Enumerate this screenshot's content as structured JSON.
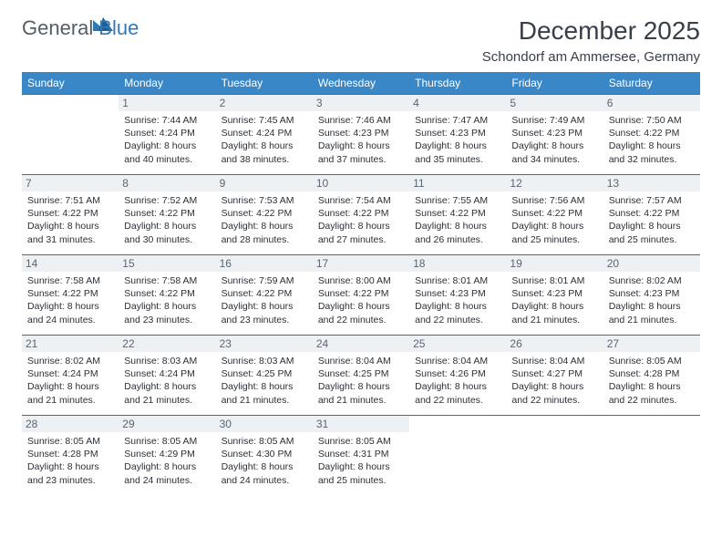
{
  "brand": {
    "general": "General",
    "blue": "Blue"
  },
  "title": "December 2025",
  "location": "Schondorf am Ammersee, Germany",
  "colors": {
    "header_bg": "#3a87c7",
    "header_text": "#ffffff",
    "daynum_bg": "#eef1f4",
    "daynum_text": "#5a6573",
    "rule": "#3a6fa5",
    "brand_gray": "#555d66",
    "brand_blue": "#2f79b9"
  },
  "typography": {
    "title_fontsize": 28,
    "location_fontsize": 15,
    "weekday_fontsize": 12,
    "daynum_fontsize": 12,
    "body_fontsize": 10.5
  },
  "weekdays": [
    "Sunday",
    "Monday",
    "Tuesday",
    "Wednesday",
    "Thursday",
    "Friday",
    "Saturday"
  ],
  "weeks": [
    [
      null,
      {
        "n": "1",
        "sr": "7:44 AM",
        "ss": "4:24 PM",
        "dl": "8 hours and 40 minutes."
      },
      {
        "n": "2",
        "sr": "7:45 AM",
        "ss": "4:24 PM",
        "dl": "8 hours and 38 minutes."
      },
      {
        "n": "3",
        "sr": "7:46 AM",
        "ss": "4:23 PM",
        "dl": "8 hours and 37 minutes."
      },
      {
        "n": "4",
        "sr": "7:47 AM",
        "ss": "4:23 PM",
        "dl": "8 hours and 35 minutes."
      },
      {
        "n": "5",
        "sr": "7:49 AM",
        "ss": "4:23 PM",
        "dl": "8 hours and 34 minutes."
      },
      {
        "n": "6",
        "sr": "7:50 AM",
        "ss": "4:22 PM",
        "dl": "8 hours and 32 minutes."
      }
    ],
    [
      {
        "n": "7",
        "sr": "7:51 AM",
        "ss": "4:22 PM",
        "dl": "8 hours and 31 minutes."
      },
      {
        "n": "8",
        "sr": "7:52 AM",
        "ss": "4:22 PM",
        "dl": "8 hours and 30 minutes."
      },
      {
        "n": "9",
        "sr": "7:53 AM",
        "ss": "4:22 PM",
        "dl": "8 hours and 28 minutes."
      },
      {
        "n": "10",
        "sr": "7:54 AM",
        "ss": "4:22 PM",
        "dl": "8 hours and 27 minutes."
      },
      {
        "n": "11",
        "sr": "7:55 AM",
        "ss": "4:22 PM",
        "dl": "8 hours and 26 minutes."
      },
      {
        "n": "12",
        "sr": "7:56 AM",
        "ss": "4:22 PM",
        "dl": "8 hours and 25 minutes."
      },
      {
        "n": "13",
        "sr": "7:57 AM",
        "ss": "4:22 PM",
        "dl": "8 hours and 25 minutes."
      }
    ],
    [
      {
        "n": "14",
        "sr": "7:58 AM",
        "ss": "4:22 PM",
        "dl": "8 hours and 24 minutes."
      },
      {
        "n": "15",
        "sr": "7:58 AM",
        "ss": "4:22 PM",
        "dl": "8 hours and 23 minutes."
      },
      {
        "n": "16",
        "sr": "7:59 AM",
        "ss": "4:22 PM",
        "dl": "8 hours and 23 minutes."
      },
      {
        "n": "17",
        "sr": "8:00 AM",
        "ss": "4:22 PM",
        "dl": "8 hours and 22 minutes."
      },
      {
        "n": "18",
        "sr": "8:01 AM",
        "ss": "4:23 PM",
        "dl": "8 hours and 22 minutes."
      },
      {
        "n": "19",
        "sr": "8:01 AM",
        "ss": "4:23 PM",
        "dl": "8 hours and 21 minutes."
      },
      {
        "n": "20",
        "sr": "8:02 AM",
        "ss": "4:23 PM",
        "dl": "8 hours and 21 minutes."
      }
    ],
    [
      {
        "n": "21",
        "sr": "8:02 AM",
        "ss": "4:24 PM",
        "dl": "8 hours and 21 minutes."
      },
      {
        "n": "22",
        "sr": "8:03 AM",
        "ss": "4:24 PM",
        "dl": "8 hours and 21 minutes."
      },
      {
        "n": "23",
        "sr": "8:03 AM",
        "ss": "4:25 PM",
        "dl": "8 hours and 21 minutes."
      },
      {
        "n": "24",
        "sr": "8:04 AM",
        "ss": "4:25 PM",
        "dl": "8 hours and 21 minutes."
      },
      {
        "n": "25",
        "sr": "8:04 AM",
        "ss": "4:26 PM",
        "dl": "8 hours and 22 minutes."
      },
      {
        "n": "26",
        "sr": "8:04 AM",
        "ss": "4:27 PM",
        "dl": "8 hours and 22 minutes."
      },
      {
        "n": "27",
        "sr": "8:05 AM",
        "ss": "4:28 PM",
        "dl": "8 hours and 22 minutes."
      }
    ],
    [
      {
        "n": "28",
        "sr": "8:05 AM",
        "ss": "4:28 PM",
        "dl": "8 hours and 23 minutes."
      },
      {
        "n": "29",
        "sr": "8:05 AM",
        "ss": "4:29 PM",
        "dl": "8 hours and 24 minutes."
      },
      {
        "n": "30",
        "sr": "8:05 AM",
        "ss": "4:30 PM",
        "dl": "8 hours and 24 minutes."
      },
      {
        "n": "31",
        "sr": "8:05 AM",
        "ss": "4:31 PM",
        "dl": "8 hours and 25 minutes."
      },
      null,
      null,
      null
    ]
  ],
  "labels": {
    "sunrise": "Sunrise:",
    "sunset": "Sunset:",
    "daylight": "Daylight:"
  }
}
